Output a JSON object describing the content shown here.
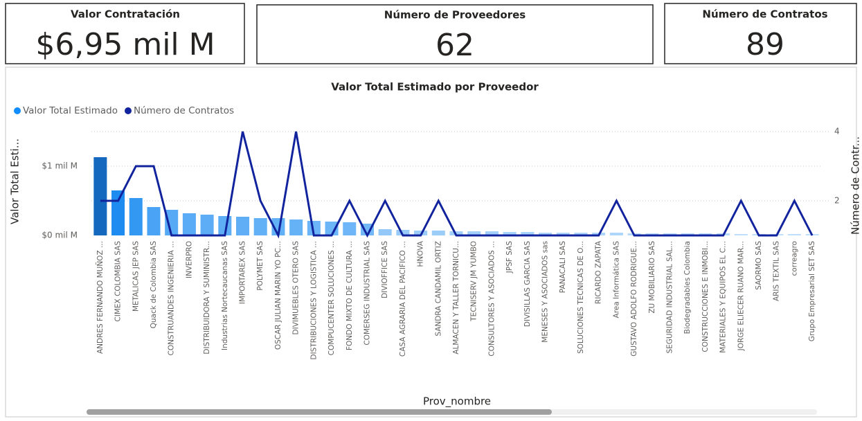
{
  "cards": [
    {
      "title": "Valor Contratación",
      "value": "$6,95 mil M"
    },
    {
      "title": "Número de Proveedores",
      "value": "62"
    },
    {
      "title": "Número de Contratos",
      "value": "89"
    }
  ],
  "chart_data": {
    "type": "bar-line",
    "title": "Valor Total Estimado por Proveedor",
    "x_label": "Prov_nombre",
    "y_label": "Valor Total Esti...",
    "y2_label": "Número de Contr...",
    "categories": [
      "ANDRES FERNANDO MUÑOZ ...",
      "CIMEX COLOMBIA SAS",
      "METALICAS JEP SAS",
      "Quack de Colombia SAS",
      "CONSTRUANDES INGENIERIA ...",
      "INVERPRO",
      "DISTRIBUIDORA Y SUMINISTR...",
      "Industrias Nortecaucanas SAS",
      "IMPORTAREX SAS",
      "POLYMET SAS",
      "OSCAR JULIAN MARIN YO PC...",
      "DIVIMUEBLES OTERO SAS",
      "DISTRIBUCIONES Y LOGISTICA ...",
      "COMPUCENTER SOLUCIONES ...",
      "FONDO MIXTO DE CULTURA ...",
      "COMERSEG INDUSTRIAL SAS",
      "DIVIOFFICE SAS",
      "CASA AGRARIA DEL PACIFICO ...",
      "HNOVA",
      "SANDRA CANDAMIL ORTIZ",
      "ALMACEN Y TALLER TORNICU...",
      "TECNISERV JM YUMBO",
      "CONSULTORES Y ASOCIADOS ...",
      "JPSF SAS",
      "DIVISILLAS GARCIA SAS",
      "MENESES Y ASOCIADOS sas",
      "PANACALI SAS",
      "SOLUCIONES TECNICAS DE O...",
      "RICARDO ZAPATA",
      "Area Informática SAS",
      "GUSTAVO ADOLFO RODRIGUE...",
      "ZU MOBILIARIO SAS",
      "SEGURIDAD INDUSTRIAL SAL...",
      "Biodegradables Colombia",
      "CONSTRUCCIONES E INMOBI...",
      "MATERIALES Y EQUIPOS EL C...",
      "JORGE ELIECER RUANO MAR...",
      "SAORMO SAS",
      "ARIS TEXTIL SAS",
      "correagro",
      "Grupo Empresarial SET SAS"
    ],
    "series": [
      {
        "name": "Valor Total Estimado",
        "color": "#118dff",
        "values": [
          1.13,
          0.65,
          0.54,
          0.41,
          0.37,
          0.32,
          0.3,
          0.28,
          0.27,
          0.25,
          0.25,
          0.23,
          0.21,
          0.2,
          0.19,
          0.17,
          0.09,
          0.08,
          0.07,
          0.07,
          0.06,
          0.06,
          0.06,
          0.05,
          0.05,
          0.04,
          0.04,
          0.04,
          0.04,
          0.04,
          0.03,
          0.03,
          0.03,
          0.03,
          0.03,
          0.03,
          0.02,
          0.02,
          0.02,
          0.02,
          0.02
        ],
        "colors": [
          "#1468bd",
          "#1e8bf0",
          "#3398f2",
          "#4aa3f4",
          "#55a9f5",
          "#5aacf6",
          "#5cadf6",
          "#5eaef6",
          "#60aff6",
          "#62b0f6",
          "#62b0f6",
          "#66b2f7",
          "#6ab4f7",
          "#6cb5f7",
          "#6eb6f7",
          "#72b8f7",
          "#94c8f9",
          "#98caf9",
          "#9ccdf9",
          "#9ccdf9",
          "#a2d0fa",
          "#a2d0fa",
          "#a2d0fa",
          "#a8d3fa",
          "#a8d3fa",
          "#aed6fa",
          "#aed6fa",
          "#aed6fa",
          "#aed6fa",
          "#aed6fa",
          "#b6dafb",
          "#b6dafb",
          "#b6dafb",
          "#b6dafb",
          "#b6dafb",
          "#b6dafb",
          "#bedefb",
          "#bedefb",
          "#bedefb",
          "#bedefb",
          "#bedefb"
        ]
      },
      {
        "name": "Número de Contratos",
        "color": "#12239e",
        "axis": "y2",
        "values": [
          2,
          2,
          3,
          3,
          1,
          1,
          1,
          1,
          4,
          2,
          1,
          4,
          1,
          1,
          2,
          1,
          2,
          1,
          1,
          2,
          1,
          1,
          1,
          1,
          1,
          1,
          1,
          1,
          1,
          2,
          1,
          1,
          1,
          1,
          1,
          1,
          2,
          1,
          1,
          2,
          1
        ]
      }
    ],
    "ylim": [
      0,
      1.6
    ],
    "yticks": [
      {
        "value": 0,
        "label": "$0 mil M"
      },
      {
        "value": 1,
        "label": "$1 mil M"
      }
    ],
    "y2lim": [
      1,
      4.2
    ],
    "y2ticks": [
      2,
      4
    ],
    "grid": true,
    "legend": "top-left"
  }
}
